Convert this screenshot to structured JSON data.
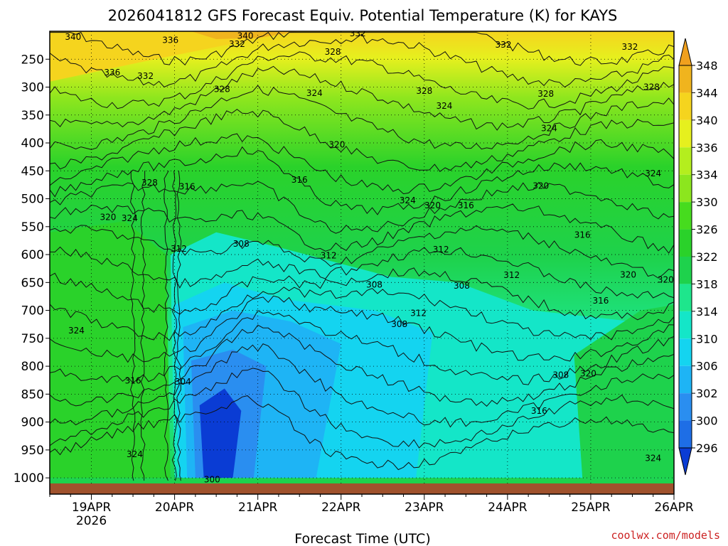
{
  "chart_data": {
    "type": "heatmap",
    "title": "2026041812 GFS Forecast Equiv. Potential Temperature (K) for KAYS",
    "xlabel": "Forecast Time (UTC)",
    "ylabel": "",
    "x_ticks": [
      "19APR",
      "20APR",
      "21APR",
      "22APR",
      "23APR",
      "24APR",
      "25APR",
      "26APR"
    ],
    "x_sublabel": "2026",
    "y_ticks": [
      "250",
      "300",
      "350",
      "400",
      "450",
      "500",
      "550",
      "600",
      "650",
      "700",
      "750",
      "800",
      "850",
      "900",
      "950",
      "1000"
    ],
    "y_values": [
      250,
      300,
      350,
      400,
      450,
      500,
      550,
      600,
      650,
      700,
      750,
      800,
      850,
      900,
      950,
      1000
    ],
    "ylim": [
      200,
      1010
    ],
    "xlim_days": [
      18.5,
      26.0
    ],
    "colorbar": {
      "levels": [
        296,
        300,
        302,
        306,
        310,
        314,
        318,
        322,
        326,
        330,
        334,
        336,
        340,
        344,
        348
      ],
      "label_levels": [
        348,
        344,
        340,
        336,
        334,
        330,
        326,
        322,
        318,
        314,
        310,
        306,
        302,
        300,
        296
      ],
      "colors": [
        "#0a3cd4",
        "#1e6ee6",
        "#2a8ef0",
        "#1eb4f5",
        "#14d4f0",
        "#14e6c8",
        "#1ee68c",
        "#1ed24c",
        "#2ad22a",
        "#46dc1e",
        "#8ce61e",
        "#b4ee1e",
        "#e6f01e",
        "#f5d41e",
        "#f0b41e",
        "#f0a01e"
      ]
    },
    "contour_labels": [
      {
        "text": "340",
        "day": 18.78,
        "p": 210
      },
      {
        "text": "336",
        "day": 19.95,
        "p": 216
      },
      {
        "text": "340",
        "day": 20.85,
        "p": 208
      },
      {
        "text": "332",
        "day": 20.75,
        "p": 223
      },
      {
        "text": "332",
        "day": 22.2,
        "p": 204
      },
      {
        "text": "328",
        "day": 21.9,
        "p": 237
      },
      {
        "text": "332",
        "day": 23.95,
        "p": 224
      },
      {
        "text": "332",
        "day": 25.47,
        "p": 228
      },
      {
        "text": "336",
        "day": 19.25,
        "p": 274
      },
      {
        "text": "332",
        "day": 19.65,
        "p": 280
      },
      {
        "text": "328",
        "day": 20.57,
        "p": 304
      },
      {
        "text": "324",
        "day": 21.68,
        "p": 311
      },
      {
        "text": "328",
        "day": 23.0,
        "p": 307
      },
      {
        "text": "324",
        "day": 23.24,
        "p": 334
      },
      {
        "text": "328",
        "day": 24.46,
        "p": 312
      },
      {
        "text": "328",
        "day": 25.73,
        "p": 300
      },
      {
        "text": "324",
        "day": 24.5,
        "p": 374
      },
      {
        "text": "320",
        "day": 21.95,
        "p": 403
      },
      {
        "text": "316",
        "day": 21.5,
        "p": 466
      },
      {
        "text": "328",
        "day": 19.7,
        "p": 471
      },
      {
        "text": "316",
        "day": 20.15,
        "p": 478
      },
      {
        "text": "324",
        "day": 25.75,
        "p": 455
      },
      {
        "text": "320",
        "day": 24.4,
        "p": 477
      },
      {
        "text": "324",
        "day": 22.8,
        "p": 503
      },
      {
        "text": "320",
        "day": 23.1,
        "p": 512
      },
      {
        "text": "316",
        "day": 23.5,
        "p": 512
      },
      {
        "text": "320",
        "day": 19.2,
        "p": 533
      },
      {
        "text": "324",
        "day": 19.46,
        "p": 535
      },
      {
        "text": "316",
        "day": 24.9,
        "p": 565
      },
      {
        "text": "308",
        "day": 20.8,
        "p": 581
      },
      {
        "text": "312",
        "day": 20.05,
        "p": 590
      },
      {
        "text": "312",
        "day": 21.85,
        "p": 602
      },
      {
        "text": "312",
        "day": 23.2,
        "p": 591
      },
      {
        "text": "312",
        "day": 24.05,
        "p": 637
      },
      {
        "text": "320",
        "day": 25.45,
        "p": 636
      },
      {
        "text": "320",
        "day": 25.9,
        "p": 645
      },
      {
        "text": "308",
        "day": 22.4,
        "p": 654
      },
      {
        "text": "308",
        "day": 23.45,
        "p": 656
      },
      {
        "text": "316",
        "day": 25.12,
        "p": 683
      },
      {
        "text": "312",
        "day": 22.93,
        "p": 705
      },
      {
        "text": "308",
        "day": 22.7,
        "p": 725
      },
      {
        "text": "324",
        "day": 18.82,
        "p": 736
      },
      {
        "text": "316",
        "day": 19.5,
        "p": 826
      },
      {
        "text": "304",
        "day": 20.1,
        "p": 828
      },
      {
        "text": "308",
        "day": 24.64,
        "p": 816
      },
      {
        "text": "320",
        "day": 24.97,
        "p": 813
      },
      {
        "text": "316",
        "day": 24.38,
        "p": 880
      },
      {
        "text": "324",
        "day": 19.52,
        "p": 958
      },
      {
        "text": "324",
        "day": 25.75,
        "p": 965
      },
      {
        "text": "300",
        "day": 20.45,
        "p": 1003
      }
    ]
  },
  "credit": "coolwx.com/models"
}
